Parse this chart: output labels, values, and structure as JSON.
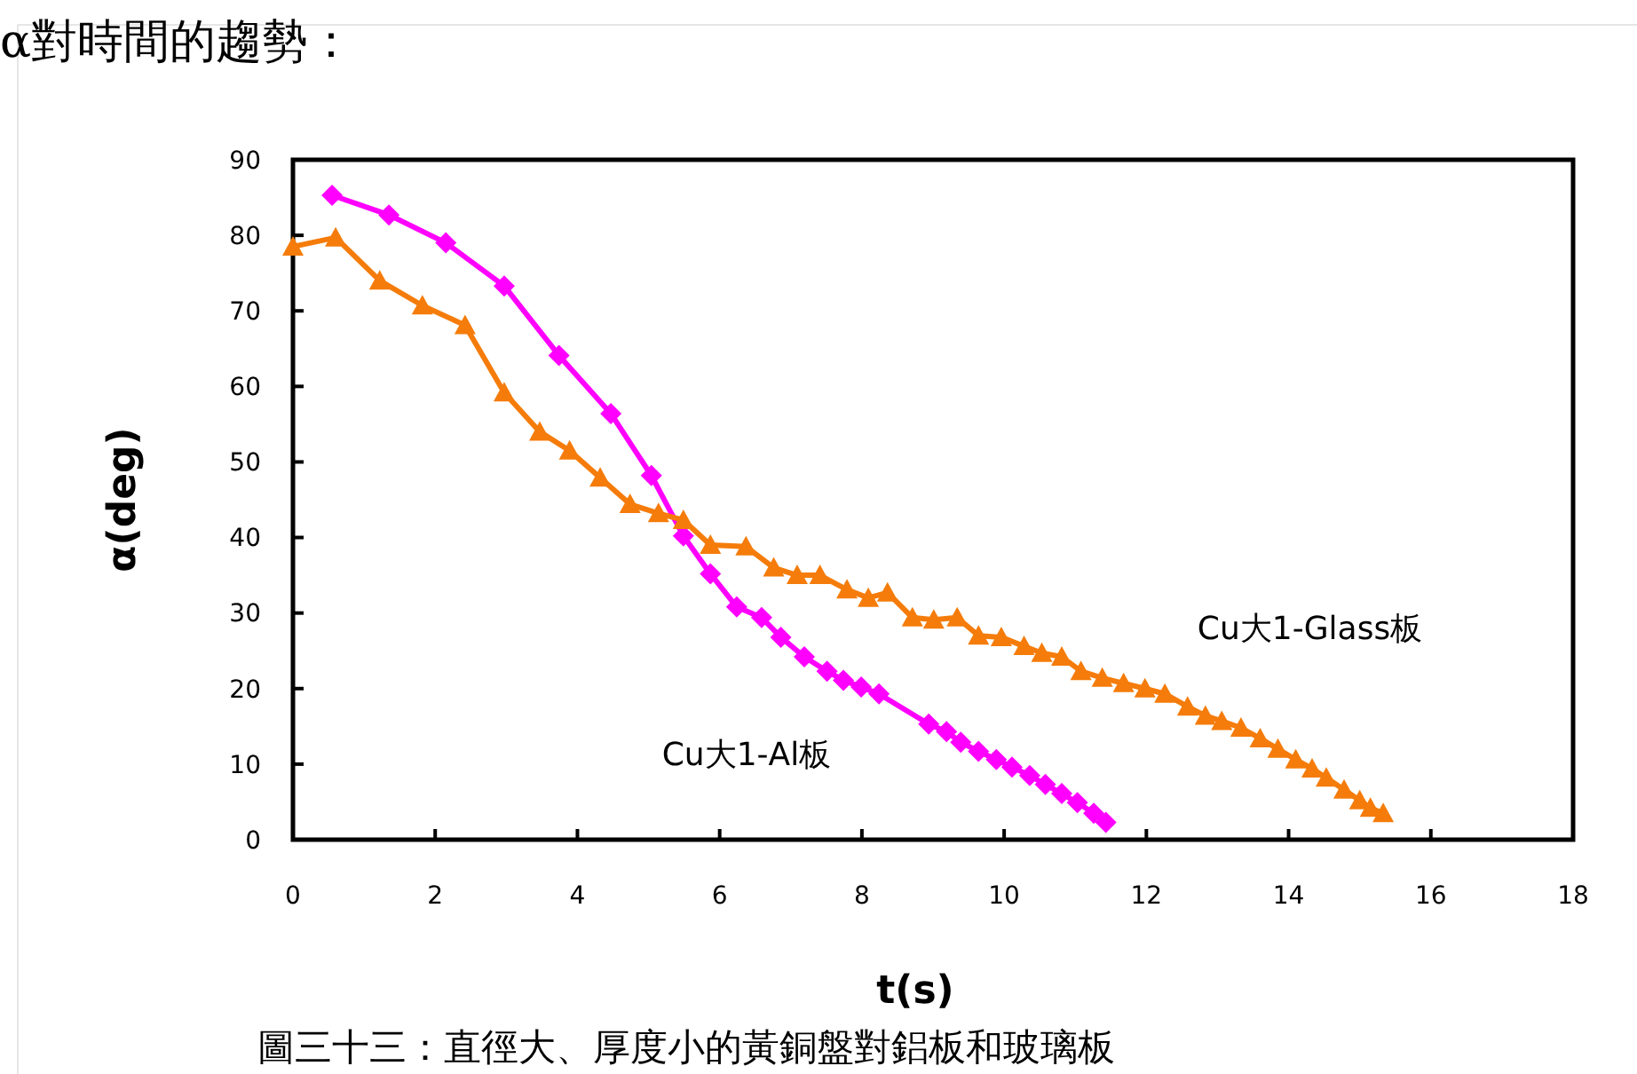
{
  "chart_data": {
    "type": "line",
    "title": "α對時間的趨勢：",
    "xlabel": "t(s)",
    "ylabel": "α(deg)",
    "xlim": [
      0,
      18
    ],
    "xticks": [
      0,
      2,
      4,
      6,
      8,
      10,
      12,
      14,
      16,
      18
    ],
    "ylim": [
      0,
      90
    ],
    "yticks": [
      0,
      10,
      20,
      30,
      40,
      50,
      60,
      70,
      80,
      90
    ],
    "grid": false,
    "annotations": [
      "圖三十三：直徑大、厚度小的黃銅盤對鋁板和玻璃板"
    ],
    "series": [
      {
        "name": "Cu大1-Al板",
        "color": "#ff00ff",
        "marker": "diamond",
        "x": [
          0.55,
          1.35,
          2.15,
          2.97,
          3.74,
          4.47,
          5.04,
          5.49,
          5.87,
          6.24,
          6.59,
          6.86,
          7.19,
          7.51,
          7.74,
          7.99,
          8.24,
          8.94,
          9.19,
          9.39,
          9.64,
          9.89,
          10.11,
          10.36,
          10.58,
          10.81,
          11.03,
          11.26,
          11.43
        ],
        "values": [
          85.3,
          82.7,
          79,
          73.3,
          64.1,
          56.4,
          48.2,
          40.2,
          35.2,
          30.8,
          29.4,
          26.8,
          24.2,
          22.3,
          21.1,
          20.2,
          19.3,
          15.3,
          14.3,
          12.9,
          11.7,
          10.6,
          9.6,
          8.5,
          7.3,
          6.1,
          4.9,
          3.5,
          2.3
        ]
      },
      {
        "name": "Cu大1-Glass板",
        "color": "#f57c0a",
        "marker": "triangle",
        "x": [
          0,
          0.6,
          1.22,
          1.82,
          2.42,
          2.97,
          3.47,
          3.89,
          4.32,
          4.74,
          5.14,
          5.49,
          5.87,
          6.37,
          6.76,
          7.09,
          7.41,
          7.79,
          8.09,
          8.36,
          8.71,
          9.01,
          9.34,
          9.64,
          9.96,
          10.28,
          10.53,
          10.81,
          11.08,
          11.38,
          11.68,
          11.98,
          12.26,
          12.58,
          12.83,
          13.06,
          13.33,
          13.6,
          13.85,
          14.1,
          14.33,
          14.53,
          14.78,
          15,
          15.15,
          15.33
        ],
        "values": [
          78.5,
          79.7,
          74,
          70.7,
          68.1,
          59.2,
          54,
          51.5,
          47.9,
          44.4,
          43.2,
          42.3,
          39,
          38.8,
          36,
          35,
          35,
          33.1,
          32,
          32.7,
          29.4,
          29.1,
          29.4,
          27,
          26.8,
          25.6,
          24.7,
          24.2,
          22.3,
          21.4,
          20.7,
          20,
          19.3,
          17.6,
          16.4,
          15.7,
          14.8,
          13.4,
          12,
          10.6,
          9.4,
          8.2,
          6.6,
          5.2,
          4.2,
          3.5
        ]
      }
    ]
  }
}
